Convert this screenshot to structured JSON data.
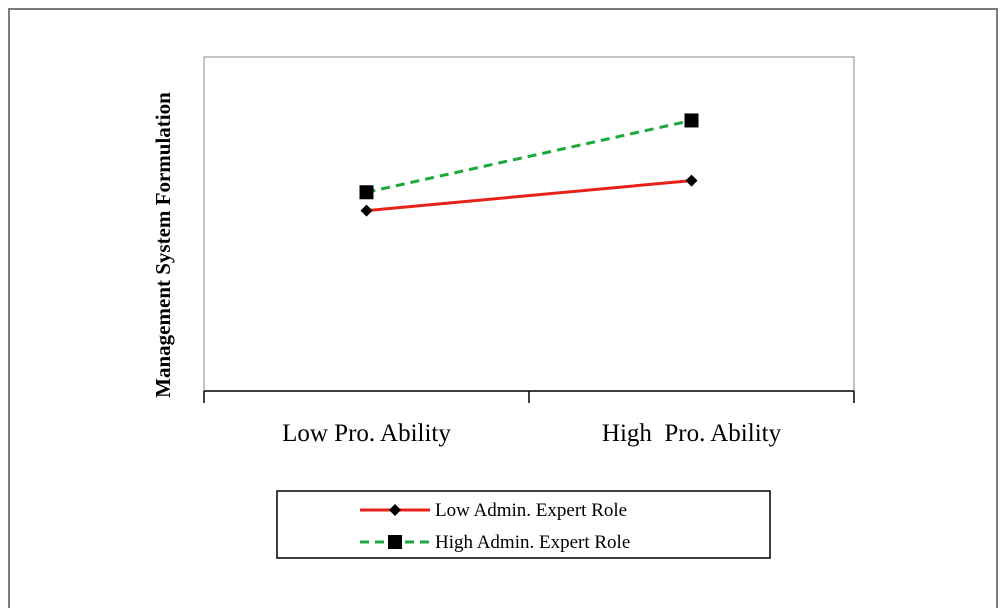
{
  "chart_data": {
    "type": "line",
    "title": "",
    "xlabel": "",
    "ylabel": "Management System Formulation",
    "categories": [
      "Low Pro. Ability",
      "High  Pro. Ability"
    ],
    "ylim": [
      0,
      10
    ],
    "grid": false,
    "legend_position": "bottom",
    "series": [
      {
        "name": "Low Admin. Expert Role",
        "values": [
          5.4,
          6.3
        ],
        "color": "#e8221b",
        "dash": "solid",
        "marker": "diamond-icon"
      },
      {
        "name": "High Admin. Expert Role",
        "values": [
          5.95,
          8.1
        ],
        "color": "#1da83c",
        "dash": "dashed",
        "marker": "square-icon"
      }
    ]
  }
}
